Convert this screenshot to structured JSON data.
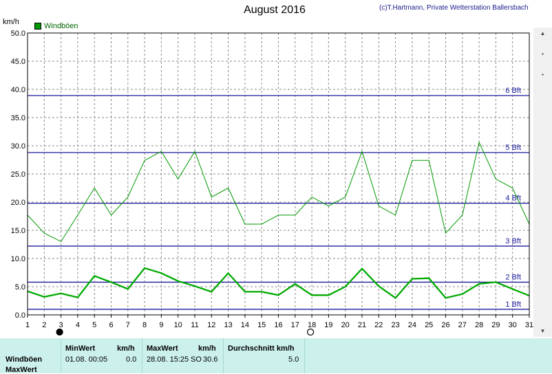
{
  "header": {
    "title": "August 2016",
    "copyright": "(c)T.Hartmann, Private Wetterstation Ballersbach",
    "unit": "km/h",
    "legend_label": "Windböen"
  },
  "colors": {
    "max_series": "#009900",
    "avg_series": "#00aa00",
    "beaufort_line": "#1a1a9c",
    "beaufort_label": "#1a1a9c",
    "grid": "#888888",
    "stats_bg": "#ccf0ec"
  },
  "chart_data": {
    "type": "line",
    "title": "August 2016",
    "ylabel": "km/h",
    "ylim": [
      0,
      50
    ],
    "y_ticks": [
      "0.0",
      "5.0",
      "10.0",
      "15.0",
      "20.0",
      "25.0",
      "30.0",
      "35.0",
      "40.0",
      "45.0",
      "50.0"
    ],
    "x": [
      1,
      2,
      3,
      4,
      5,
      6,
      7,
      8,
      9,
      10,
      11,
      12,
      13,
      14,
      15,
      16,
      17,
      18,
      19,
      20,
      21,
      22,
      23,
      24,
      25,
      26,
      27,
      28,
      29,
      30,
      31
    ],
    "grid": true,
    "legend_position": "top-left",
    "series": [
      {
        "name": "Windböen",
        "values": [
          17.7,
          14.5,
          13.0,
          17.7,
          22.5,
          17.7,
          20.9,
          27.4,
          29.0,
          24.1,
          29.0,
          20.9,
          22.5,
          16.1,
          16.1,
          17.7,
          17.7,
          20.9,
          19.3,
          20.9,
          29.0,
          19.3,
          17.7,
          27.4,
          27.4,
          14.5,
          17.7,
          30.6,
          24.1,
          22.5,
          16.1
        ]
      },
      {
        "values": [
          4.2,
          3.2,
          3.8,
          3.1,
          6.9,
          5.8,
          4.6,
          8.3,
          7.4,
          6.0,
          5.1,
          4.1,
          7.4,
          4.1,
          4.1,
          3.5,
          5.5,
          3.5,
          3.5,
          5.0,
          8.2,
          5.1,
          3.0,
          6.4,
          6.5,
          3.0,
          3.7,
          5.5,
          5.8,
          4.6,
          3.4
        ]
      }
    ],
    "reference_lines": [
      {
        "label": "1 Bft",
        "value": 1.0
      },
      {
        "label": "2 Bft",
        "value": 5.8
      },
      {
        "label": "3 Bft",
        "value": 12.2
      },
      {
        "label": "4 Bft",
        "value": 19.8
      },
      {
        "label": "5 Bft",
        "value": 28.8
      },
      {
        "label": "6 Bft",
        "value": 38.9
      }
    ],
    "moon_phases": [
      {
        "day": 3,
        "phase": "new"
      },
      {
        "day": 18,
        "phase": "full"
      }
    ]
  },
  "stats": {
    "row_label": "Windböen",
    "row_label2": "MaxWert",
    "min_header": "MinWert",
    "min_unit": "km/h",
    "min_time": "01.08.  00:05",
    "min_value": "0.0",
    "max_header": "MaxWert",
    "max_unit": "km/h",
    "max_time": "28.08.  15:25",
    "max_dir": "SO",
    "max_value": "30.6",
    "avg_header": "Durchschnitt km/h",
    "avg_value": "5.0"
  }
}
